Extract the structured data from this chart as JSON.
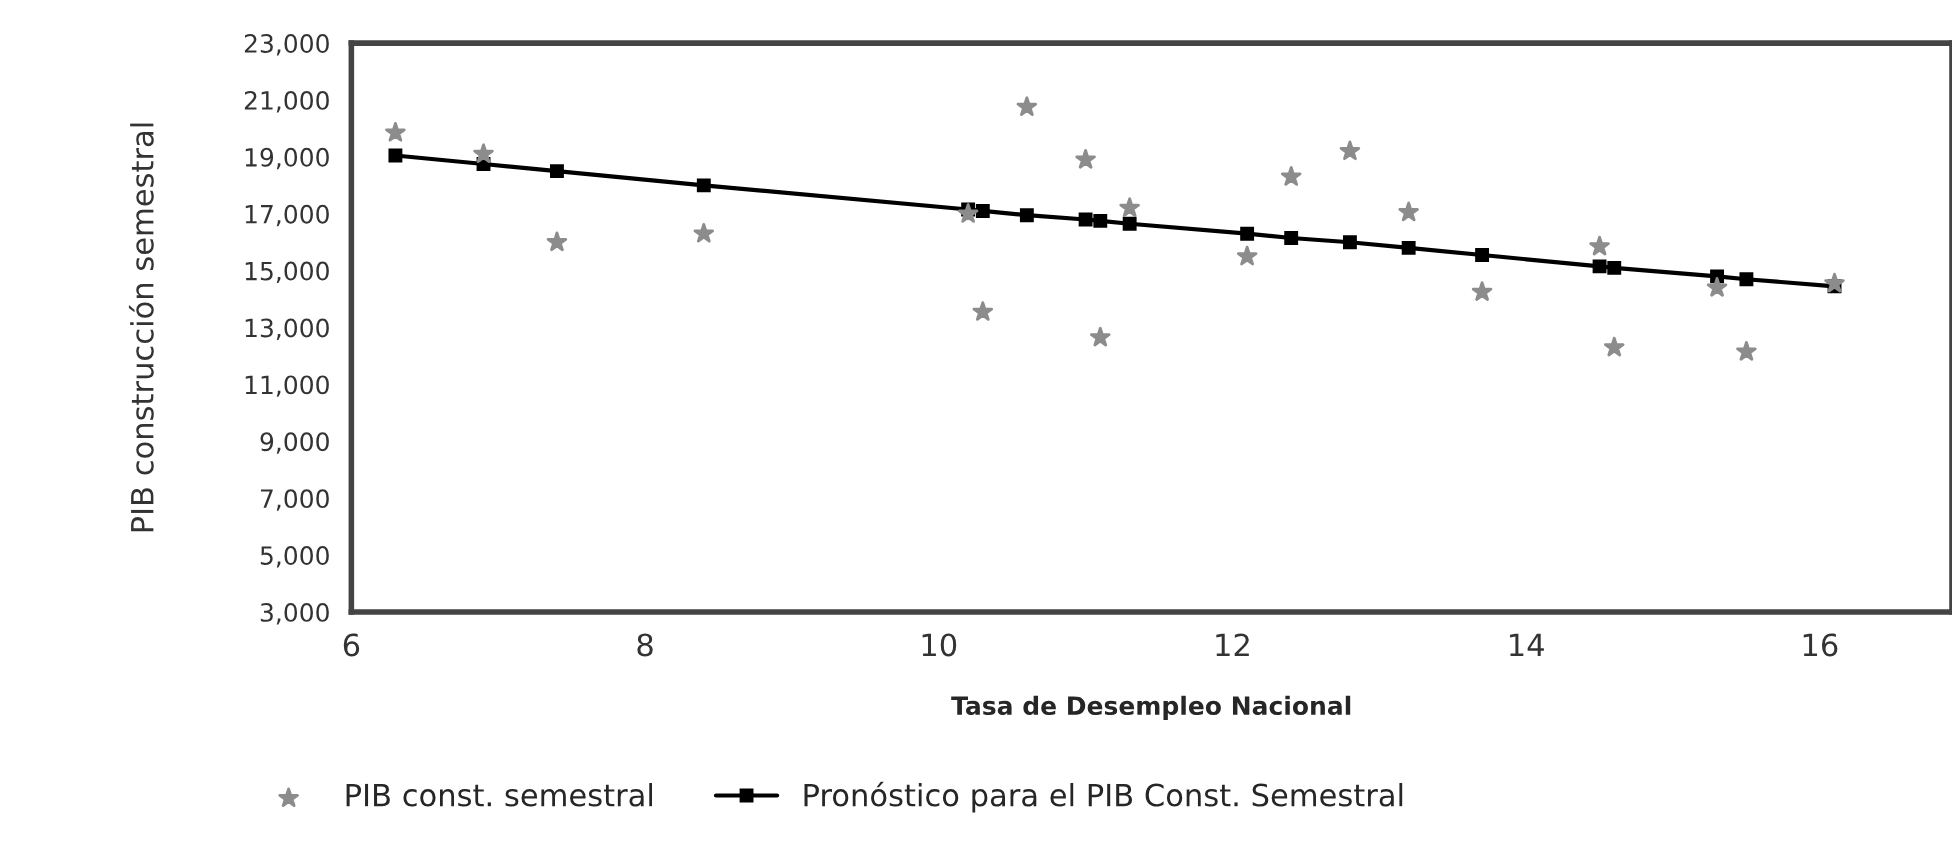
{
  "chart_data": {
    "type": "scatter",
    "xlabel": "Tasa de Desempleo Nacional",
    "ylabel": "PIB construcción semestral",
    "legend": "bottom",
    "grid": false,
    "xlim": [
      6,
      16.9
    ],
    "xticks": [
      6,
      8,
      10,
      12,
      14,
      16
    ],
    "ylim": [
      3000,
      23000
    ],
    "yticks": [
      {
        "value": 3000,
        "label": "3,000"
      },
      {
        "value": 5000,
        "label": "5,000"
      },
      {
        "value": 7000,
        "label": "7,000"
      },
      {
        "value": 9000,
        "label": "9,000"
      },
      {
        "value": 11000,
        "label": "11,000"
      },
      {
        "value": 13000,
        "label": "13,000"
      },
      {
        "value": 15000,
        "label": "15,000"
      },
      {
        "value": 17000,
        "label": "17,000"
      },
      {
        "value": 19000,
        "label": "19,000"
      },
      {
        "value": 21000,
        "label": "21,000"
      },
      {
        "value": 23000,
        "label": "23,000"
      }
    ],
    "series": [
      {
        "name": "PIB const. semestral",
        "marker": "star",
        "color": "#8c8c8c",
        "x": [
          6.3,
          6.9,
          7.4,
          8.4,
          10.2,
          10.3,
          10.6,
          11.0,
          11.1,
          11.3,
          12.1,
          12.4,
          12.8,
          13.2,
          13.7,
          14.5,
          14.6,
          15.3,
          15.5,
          16.1
        ],
        "values": [
          19850,
          19100,
          16000,
          16300,
          17000,
          13550,
          20750,
          18900,
          12650,
          17200,
          15500,
          18300,
          19200,
          17050,
          14250,
          15850,
          12300,
          14400,
          12150,
          14550
        ]
      },
      {
        "name": "Pronóstico para el PIB Const. Semestral",
        "type": "line",
        "marker": "square",
        "line_style": "solid",
        "color": "#000000",
        "x": [
          6.3,
          6.9,
          7.4,
          8.4,
          10.2,
          10.3,
          10.6,
          11.0,
          11.1,
          11.3,
          12.1,
          12.4,
          12.8,
          13.2,
          13.7,
          14.5,
          14.6,
          15.3,
          15.5,
          16.1
        ],
        "values": [
          19050,
          18750,
          18500,
          18000,
          17150,
          17100,
          16950,
          16800,
          16750,
          16650,
          16300,
          16150,
          16000,
          15800,
          15550,
          15150,
          15100,
          14800,
          14700,
          14450
        ]
      }
    ]
  }
}
